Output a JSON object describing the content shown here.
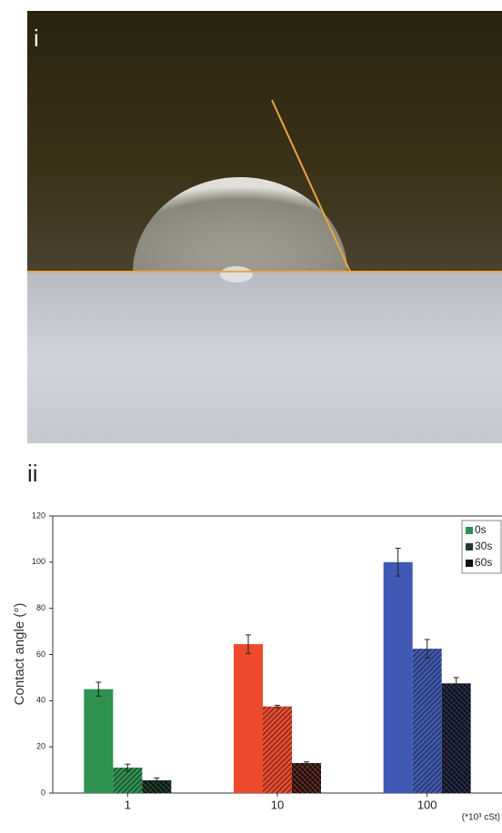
{
  "panel_labels": [
    "i",
    "ii"
  ],
  "chart_data": {
    "type": "bar",
    "ylabel": "Contact angle (°)",
    "xunit": "(*10³ cSt)",
    "categories": [
      "1",
      "10",
      "100"
    ],
    "category_colors": [
      "#2e9150",
      "#ee4a2c",
      "#3f59b4"
    ],
    "series": [
      {
        "name": "0s",
        "color": "#2e9150",
        "pattern": "solid",
        "values": [
          45,
          64.5,
          100
        ],
        "errors": [
          3,
          4,
          6
        ]
      },
      {
        "name": "30s",
        "color": "#26402c",
        "pattern": "hatch",
        "values": [
          11,
          37.5,
          62.5
        ],
        "errors": [
          1.5,
          0.5,
          4
        ]
      },
      {
        "name": "60s",
        "color": "#111111",
        "pattern": "cross",
        "values": [
          5.5,
          13,
          47.5
        ],
        "errors": [
          1,
          0.5,
          2.5
        ]
      }
    ],
    "ylim": [
      0,
      120
    ],
    "yticks": [
      0,
      20,
      40,
      60,
      80,
      100,
      120
    ],
    "legend": "upper right"
  }
}
